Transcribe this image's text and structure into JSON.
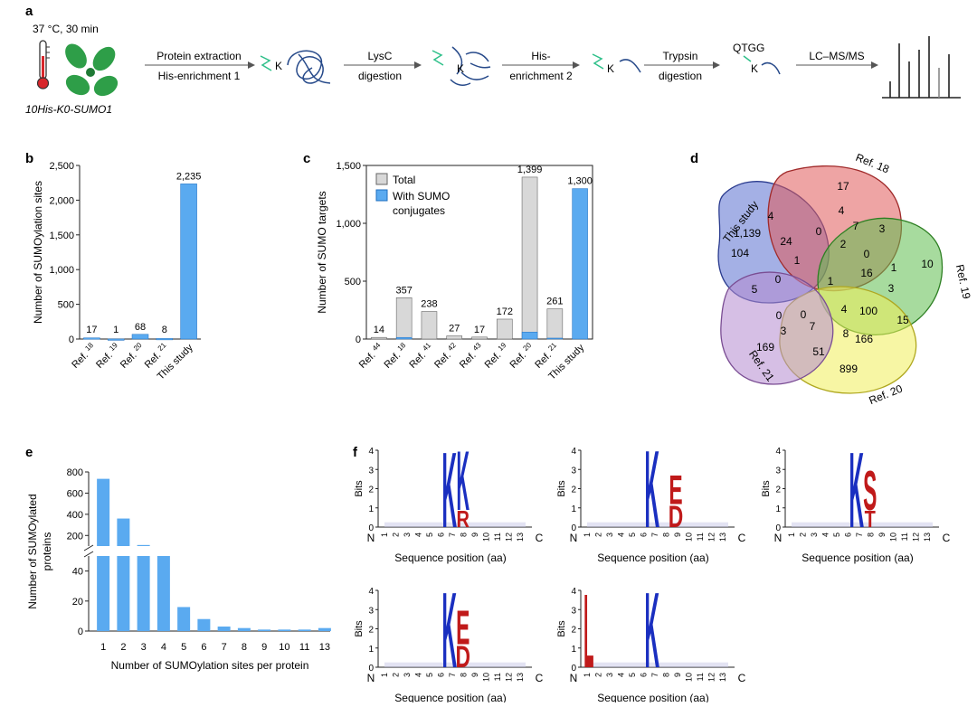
{
  "panel_a": {
    "label": "a",
    "condition": "37 °C, 30 min",
    "strain": "10His-K0-SUMO1",
    "steps": [
      {
        "top": "Protein extraction",
        "bottom": "His-enrichment 1"
      },
      {
        "top": "LysC",
        "bottom": "digestion"
      },
      {
        "top": "His-",
        "bottom": "enrichment 2"
      },
      {
        "top": "Trypsin",
        "bottom": "digestion"
      },
      {
        "top": "",
        "bottom": "LC–MS/MS"
      }
    ],
    "k_label": "K",
    "tag_label": "QTGG"
  },
  "chart_data": [
    {
      "panel": "b",
      "type": "bar",
      "ylabel": "Number of SUMOylation sites",
      "ylim": [
        0,
        2500
      ],
      "yticks": [
        "0",
        "500",
        "1,000",
        "1,500",
        "2,000",
        "2,500"
      ],
      "categories": [
        "Ref. 18",
        "Ref. 19",
        "Ref. 20",
        "Ref. 21",
        "This study"
      ],
      "values": [
        17,
        1,
        68,
        8,
        2235
      ],
      "value_labels": [
        "17",
        "1",
        "68",
        "8",
        "2,235"
      ],
      "color": "#5aaaf0"
    },
    {
      "panel": "c",
      "type": "bar",
      "ylabel": "Number of SUMO targets",
      "ylim": [
        0,
        1500
      ],
      "yticks": [
        "0",
        "500",
        "1,000",
        "1,500"
      ],
      "categories": [
        "Ref. 44",
        "Ref. 18",
        "Ref. 41",
        "Ref. 42",
        "Ref. 43",
        "Ref. 19",
        "Ref. 20",
        "Ref. 21",
        "This study"
      ],
      "series": [
        {
          "name": "Total",
          "values": [
            14,
            357,
            238,
            27,
            17,
            172,
            1399,
            261,
            0
          ],
          "color": "#d8d8d8"
        },
        {
          "name": "With SUMO conjugates",
          "values": [
            0,
            14,
            0,
            0,
            0,
            0,
            60,
            8,
            1300
          ],
          "color": "#5aaaf0"
        }
      ],
      "value_labels": [
        "14",
        "357",
        "238",
        "27",
        "17",
        "172",
        "1,399",
        "261",
        "1,300"
      ],
      "legend": [
        "Total",
        "With SUMO conjugates"
      ]
    },
    {
      "panel": "e",
      "type": "bar",
      "ylabel": "Number of SUMOylated proteins",
      "xlabel": "Number of SUMOylation sites per protein",
      "categories": [
        "1",
        "2",
        "3",
        "4",
        "5",
        "6",
        "7",
        "8",
        "9",
        "10",
        "11",
        "13"
      ],
      "values": [
        735,
        360,
        110,
        50,
        16,
        8,
        3,
        2,
        1,
        1,
        1,
        2
      ],
      "yticks_upper": [
        "200",
        "400",
        "600",
        "800"
      ],
      "yticks_lower": [
        "0",
        "20",
        "40"
      ],
      "color": "#5aaaf0"
    }
  ],
  "panel_b": {
    "label": "b"
  },
  "panel_c": {
    "label": "c"
  },
  "panel_d": {
    "label": "d",
    "sets": [
      "This study",
      "Ref. 18",
      "Ref. 19",
      "Ref. 20",
      "Ref. 21"
    ],
    "numbers": [
      "1,139",
      "17",
      "10",
      "899",
      "169",
      "104",
      "4",
      "4",
      "24",
      "7",
      "3",
      "0",
      "2",
      "1",
      "0",
      "16",
      "1",
      "3",
      "5",
      "0",
      "1",
      "15",
      "100",
      "0",
      "0",
      "3",
      "7",
      "4",
      "8",
      "166",
      "51"
    ]
  },
  "panel_e": {
    "label": "e"
  },
  "panel_f": {
    "label": "f",
    "ylabel": "Bits",
    "xlabel": "Sequence position (aa)",
    "n_label": "N",
    "c_label": "C",
    "positions": [
      "1",
      "2",
      "3",
      "4",
      "5",
      "6",
      "7",
      "8",
      "9",
      "10",
      "11",
      "12",
      "13"
    ],
    "yticks": [
      "0",
      "1",
      "2",
      "3",
      "4"
    ],
    "logos": [
      {
        "letters": [
          "K",
          "K",
          "R"
        ]
      },
      {
        "letters": [
          "K",
          "E",
          "D"
        ]
      },
      {
        "letters": [
          "K",
          "S",
          "T"
        ]
      },
      {
        "letters": [
          "K",
          "E",
          "D"
        ]
      },
      {
        "letters": [
          "L",
          "K"
        ]
      }
    ]
  }
}
